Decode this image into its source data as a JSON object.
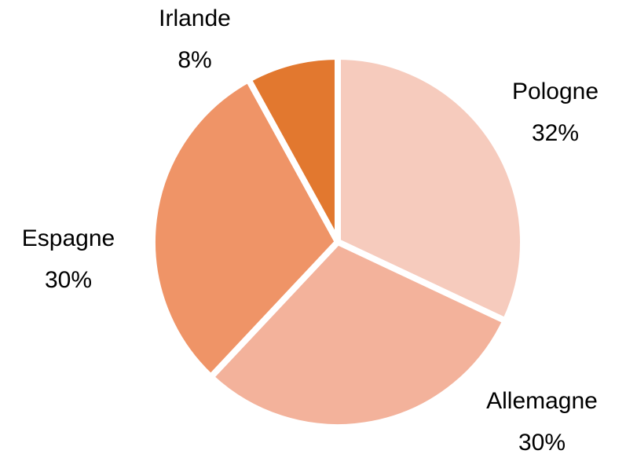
{
  "chart_data": {
    "type": "pie",
    "categories": [
      "Pologne",
      "Allemagne",
      "Espagne",
      "Irlande"
    ],
    "values": [
      32,
      30,
      30,
      8
    ],
    "value_labels": [
      "32%",
      "30%",
      "30%",
      "8%"
    ],
    "colors": [
      "#f6cbbd",
      "#f3b29b",
      "#ef9467",
      "#e2782f"
    ]
  }
}
